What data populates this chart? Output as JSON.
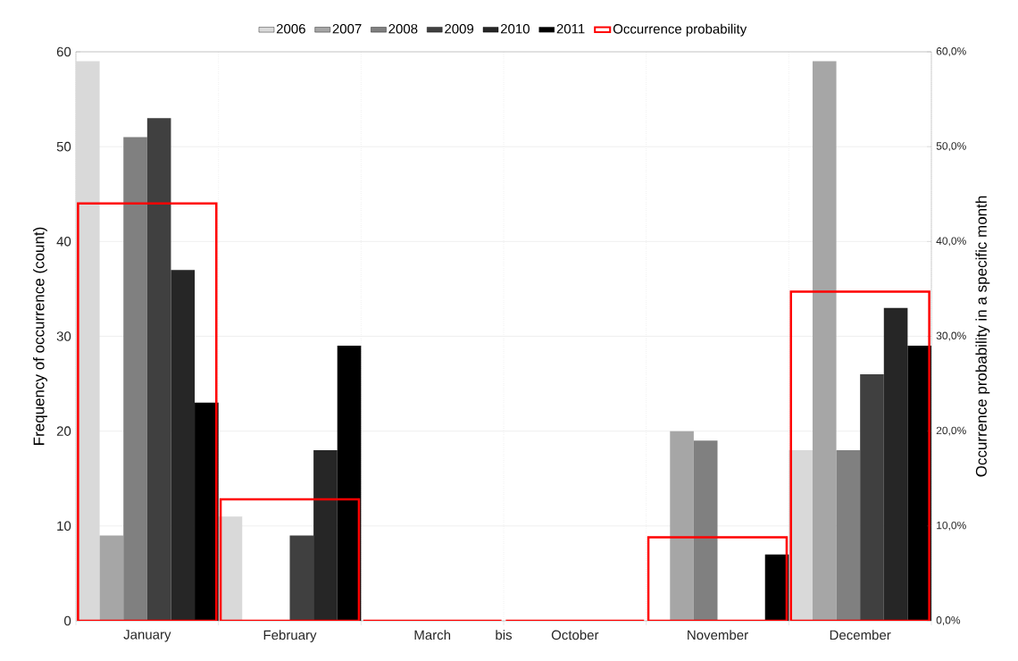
{
  "chart_data": {
    "type": "bar",
    "categories": [
      "January",
      "February",
      "March",
      "October",
      "November",
      "December"
    ],
    "series": [
      {
        "name": "2006",
        "color": "#d9d9d9",
        "values": [
          59,
          11,
          0,
          0,
          0,
          18
        ]
      },
      {
        "name": "2007",
        "color": "#a6a6a6",
        "values": [
          9,
          0,
          0,
          0,
          20,
          59
        ]
      },
      {
        "name": "2008",
        "color": "#808080",
        "values": [
          51,
          0,
          0,
          0,
          19,
          18
        ]
      },
      {
        "name": "2009",
        "color": "#404040",
        "values": [
          53,
          9,
          0,
          0,
          0,
          26
        ]
      },
      {
        "name": "2010",
        "color": "#262626",
        "values": [
          37,
          18,
          0,
          0,
          0,
          33
        ]
      },
      {
        "name": "2011",
        "color": "#000000",
        "values": [
          23,
          29,
          0,
          0,
          7,
          29
        ]
      },
      {
        "name": "Occurrence probability",
        "color": "#ff0000",
        "axis": "y2",
        "values": [
          44.0,
          12.8,
          0,
          0,
          8.8,
          34.7
        ]
      }
    ],
    "ylabel": "Frequency of occurrence (count)",
    "y2label": "Occurrence probability in a specific month",
    "ylim": [
      0,
      60
    ],
    "yticks": [
      0,
      10,
      20,
      30,
      40,
      50,
      60
    ],
    "y2lim": [
      0,
      60
    ],
    "y2ticks": [
      {
        "value": 0,
        "label": "0,0%"
      },
      {
        "value": 10,
        "label": "10,0%"
      },
      {
        "value": 20,
        "label": "20,0%"
      },
      {
        "value": 30,
        "label": "30,0%"
      },
      {
        "value": 40,
        "label": "40,0%"
      },
      {
        "value": 50,
        "label": "50,0%"
      },
      {
        "value": 60,
        "label": "60,0%"
      }
    ],
    "annotations": [
      "bis"
    ],
    "grid": true,
    "legend": "top"
  }
}
